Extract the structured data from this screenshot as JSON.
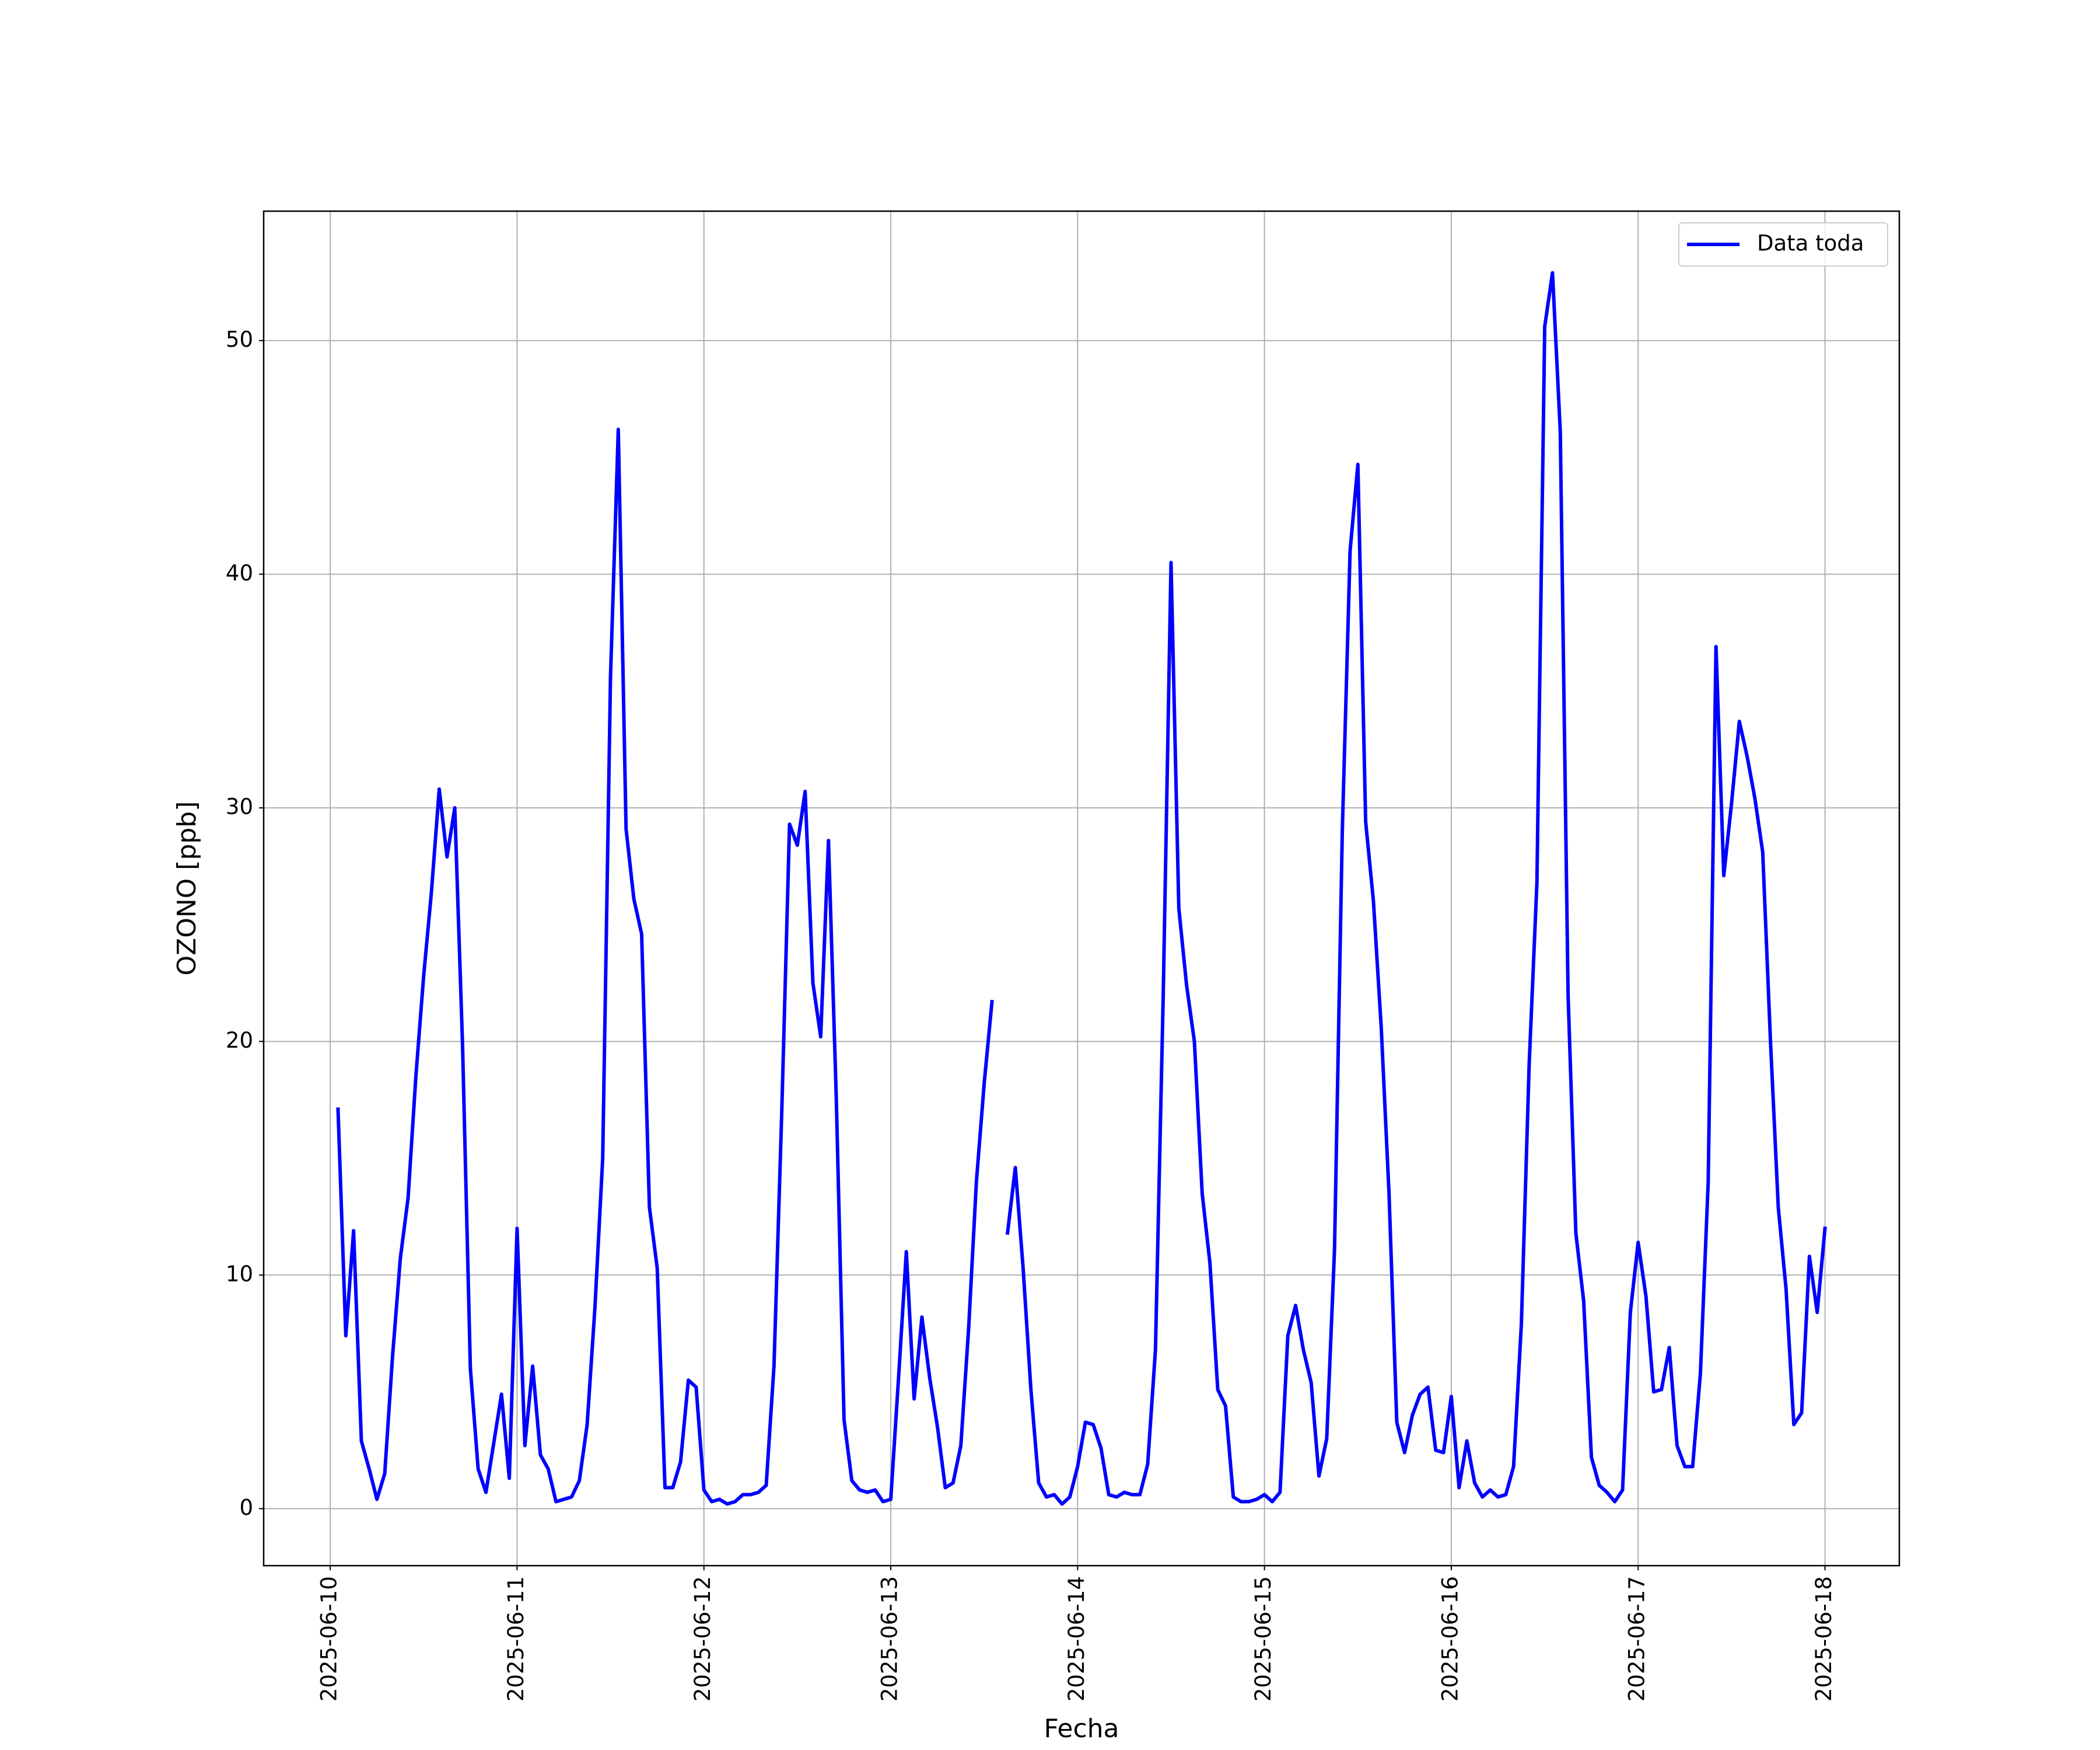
{
  "chart_data": {
    "type": "line",
    "xlabel": "Fecha",
    "ylabel": "OZONO [ppb]",
    "x": [
      "2025-06-10 01:00",
      "2025-06-10 02:00",
      "2025-06-10 03:00",
      "2025-06-10 04:00",
      "2025-06-10 05:00",
      "2025-06-10 06:00",
      "2025-06-10 07:00",
      "2025-06-10 08:00",
      "2025-06-10 09:00",
      "2025-06-10 10:00",
      "2025-06-10 11:00",
      "2025-06-10 12:00",
      "2025-06-10 13:00",
      "2025-06-10 14:00",
      "2025-06-10 15:00",
      "2025-06-10 16:00",
      "2025-06-10 17:00",
      "2025-06-10 18:00",
      "2025-06-10 19:00",
      "2025-06-10 20:00",
      "2025-06-10 21:00",
      "2025-06-10 22:00",
      "2025-06-10 23:00",
      "2025-06-11 00:00",
      "2025-06-11 01:00",
      "2025-06-11 02:00",
      "2025-06-11 03:00",
      "2025-06-11 04:00",
      "2025-06-11 05:00",
      "2025-06-11 06:00",
      "2025-06-11 07:00",
      "2025-06-11 08:00",
      "2025-06-11 09:00",
      "2025-06-11 10:00",
      "2025-06-11 11:00",
      "2025-06-11 12:00",
      "2025-06-11 13:00",
      "2025-06-11 14:00",
      "2025-06-11 15:00",
      "2025-06-11 16:00",
      "2025-06-11 17:00",
      "2025-06-11 18:00",
      "2025-06-11 19:00",
      "2025-06-11 20:00",
      "2025-06-11 21:00",
      "2025-06-11 22:00",
      "2025-06-11 23:00",
      "2025-06-12 00:00",
      "2025-06-12 01:00",
      "2025-06-12 02:00",
      "2025-06-12 03:00",
      "2025-06-12 04:00",
      "2025-06-12 05:00",
      "2025-06-12 06:00",
      "2025-06-12 07:00",
      "2025-06-12 08:00",
      "2025-06-12 09:00",
      "2025-06-12 10:00",
      "2025-06-12 11:00",
      "2025-06-12 12:00",
      "2025-06-12 13:00",
      "2025-06-12 14:00",
      "2025-06-12 15:00",
      "2025-06-12 16:00",
      "2025-06-12 17:00",
      "2025-06-12 18:00",
      "2025-06-12 19:00",
      "2025-06-12 20:00",
      "2025-06-12 21:00",
      "2025-06-12 22:00",
      "2025-06-12 23:00",
      "2025-06-13 00:00",
      "2025-06-13 01:00",
      "2025-06-13 02:00",
      "2025-06-13 03:00",
      "2025-06-13 04:00",
      "2025-06-13 05:00",
      "2025-06-13 06:00",
      "2025-06-13 07:00",
      "2025-06-13 08:00",
      "2025-06-13 09:00",
      "2025-06-13 10:00",
      "2025-06-13 11:00",
      "2025-06-13 12:00",
      "2025-06-13 13:00",
      "2025-06-13 14:00",
      "2025-06-13 15:00",
      "2025-06-13 16:00",
      "2025-06-13 17:00",
      "2025-06-13 18:00",
      "2025-06-13 19:00",
      "2025-06-13 20:00",
      "2025-06-13 21:00",
      "2025-06-13 22:00",
      "2025-06-13 23:00",
      "2025-06-14 00:00",
      "2025-06-14 01:00",
      "2025-06-14 02:00",
      "2025-06-14 03:00",
      "2025-06-14 04:00",
      "2025-06-14 05:00",
      "2025-06-14 06:00",
      "2025-06-14 07:00",
      "2025-06-14 08:00",
      "2025-06-14 09:00",
      "2025-06-14 10:00",
      "2025-06-14 11:00",
      "2025-06-14 12:00",
      "2025-06-14 13:00",
      "2025-06-14 14:00",
      "2025-06-14 15:00",
      "2025-06-14 16:00",
      "2025-06-14 17:00",
      "2025-06-14 18:00",
      "2025-06-14 19:00",
      "2025-06-14 20:00",
      "2025-06-14 21:00",
      "2025-06-14 22:00",
      "2025-06-14 23:00",
      "2025-06-15 00:00",
      "2025-06-15 01:00",
      "2025-06-15 02:00",
      "2025-06-15 03:00",
      "2025-06-15 04:00",
      "2025-06-15 05:00",
      "2025-06-15 06:00",
      "2025-06-15 07:00",
      "2025-06-15 08:00",
      "2025-06-15 09:00",
      "2025-06-15 10:00",
      "2025-06-15 11:00",
      "2025-06-15 12:00",
      "2025-06-15 13:00",
      "2025-06-15 14:00",
      "2025-06-15 15:00",
      "2025-06-15 16:00",
      "2025-06-15 17:00",
      "2025-06-15 18:00",
      "2025-06-15 19:00",
      "2025-06-15 20:00",
      "2025-06-15 21:00",
      "2025-06-15 22:00",
      "2025-06-15 23:00",
      "2025-06-16 00:00",
      "2025-06-16 01:00",
      "2025-06-16 02:00",
      "2025-06-16 03:00",
      "2025-06-16 04:00",
      "2025-06-16 05:00",
      "2025-06-16 06:00",
      "2025-06-16 07:00",
      "2025-06-16 08:00",
      "2025-06-16 09:00",
      "2025-06-16 10:00",
      "2025-06-16 11:00",
      "2025-06-16 12:00",
      "2025-06-16 13:00",
      "2025-06-16 14:00",
      "2025-06-16 15:00",
      "2025-06-16 16:00",
      "2025-06-16 17:00",
      "2025-06-16 18:00",
      "2025-06-16 19:00",
      "2025-06-16 20:00",
      "2025-06-16 21:00",
      "2025-06-16 22:00",
      "2025-06-16 23:00",
      "2025-06-17 00:00",
      "2025-06-17 01:00",
      "2025-06-17 02:00",
      "2025-06-17 03:00",
      "2025-06-17 04:00",
      "2025-06-17 05:00",
      "2025-06-17 06:00",
      "2025-06-17 07:00",
      "2025-06-17 08:00",
      "2025-06-17 09:00",
      "2025-06-17 10:00",
      "2025-06-17 11:00",
      "2025-06-17 12:00",
      "2025-06-17 13:00",
      "2025-06-17 14:00",
      "2025-06-17 15:00",
      "2025-06-17 16:00",
      "2025-06-17 17:00",
      "2025-06-17 18:00",
      "2025-06-17 19:00",
      "2025-06-17 20:00",
      "2025-06-17 21:00",
      "2025-06-17 22:00",
      "2025-06-17 23:00",
      "2025-06-18 00:00"
    ],
    "series": [
      {
        "name": "Data toda",
        "color": "#0000ff",
        "values": [
          17.1,
          7.4,
          11.9,
          2.9,
          1.7,
          0.4,
          1.5,
          6.5,
          10.7,
          13.3,
          18.5,
          22.8,
          26.4,
          30.8,
          27.9,
          30.0,
          19.8,
          6.0,
          1.7,
          0.7,
          2.8,
          4.9,
          1.3,
          12.0,
          2.7,
          6.1,
          2.3,
          1.7,
          0.3,
          0.4,
          0.5,
          1.2,
          3.6,
          8.6,
          15.0,
          35.6,
          46.2,
          29.1,
          26.1,
          24.6,
          12.9,
          10.3,
          0.9,
          0.9,
          2.0,
          5.5,
          5.2,
          0.8,
          0.3,
          0.4,
          0.2,
          0.3,
          0.6,
          0.6,
          0.7,
          1.0,
          6.1,
          17.0,
          29.3,
          28.4,
          30.7,
          22.5,
          20.2,
          28.6,
          17.6,
          3.8,
          1.2,
          0.8,
          0.7,
          0.8,
          0.3,
          0.4,
          5.6,
          11.0,
          4.7,
          8.2,
          5.6,
          3.5,
          0.9,
          1.1,
          2.7,
          7.7,
          14.0,
          18.2,
          21.7,
          null,
          11.8,
          14.6,
          10.3,
          5.1,
          1.1,
          0.5,
          0.6,
          0.2,
          0.5,
          1.8,
          3.7,
          3.6,
          2.6,
          0.6,
          0.5,
          0.7,
          0.6,
          0.6,
          1.9,
          6.8,
          22.0,
          40.5,
          25.7,
          22.4,
          20.0,
          13.5,
          10.5,
          5.1,
          4.4,
          0.5,
          0.3,
          0.3,
          0.4,
          0.6,
          0.3,
          0.7,
          7.4,
          8.7,
          6.8,
          5.4,
          1.4,
          3.0,
          11.1,
          29.0,
          41.0,
          44.7,
          29.4,
          26.0,
          20.6,
          13.5,
          3.7,
          2.4,
          4.0,
          4.9,
          5.2,
          2.5,
          2.4,
          4.8,
          0.9,
          2.9,
          1.1,
          0.5,
          0.8,
          0.5,
          0.6,
          1.8,
          7.9,
          19.0,
          26.8,
          50.6,
          52.9,
          46.1,
          22.0,
          11.8,
          8.9,
          2.2,
          1.0,
          0.7,
          0.3,
          0.8,
          8.4,
          11.4,
          9.1,
          5.0,
          5.1,
          6.9,
          2.7,
          1.8,
          1.8,
          5.8,
          14.0,
          36.9,
          27.1,
          30.2,
          33.7,
          32.2,
          30.4,
          28.1,
          20.0,
          12.9,
          9.4,
          3.6,
          4.1,
          10.8,
          8.4,
          12.0
        ]
      }
    ],
    "xlim": [
      "2025-06-09 15:27",
      "2025-06-18 09:33"
    ],
    "xticks": [
      "2025-06-10",
      "2025-06-11",
      "2025-06-12",
      "2025-06-13",
      "2025-06-14",
      "2025-06-15",
      "2025-06-16",
      "2025-06-17",
      "2025-06-18"
    ],
    "ylim": [
      -2.44,
      55.54
    ],
    "yticks": [
      0,
      10,
      20,
      30,
      40,
      50
    ],
    "grid": true,
    "legend": "upper right"
  }
}
